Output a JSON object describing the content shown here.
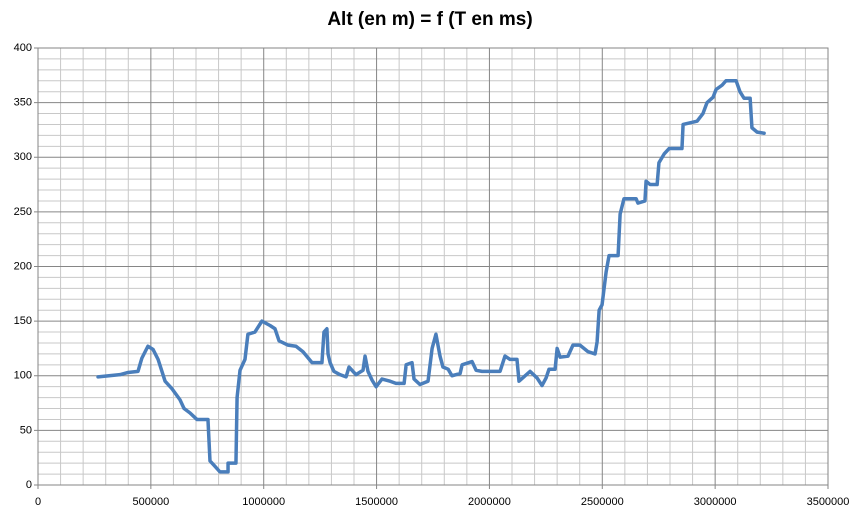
{
  "chart_data": {
    "type": "line",
    "title": "Alt (en m) = f (T en ms)",
    "x": [
      266000,
      363000,
      399000,
      443000,
      460000,
      487000,
      510000,
      532000,
      563000,
      594000,
      629000,
      647000,
      673000,
      704000,
      753000,
      762000,
      780000,
      806000,
      842000,
      842000,
      877000,
      882000,
      895000,
      917000,
      930000,
      961000,
      992000,
      1028000,
      1050000,
      1068000,
      1108000,
      1143000,
      1174000,
      1214000,
      1258000,
      1267000,
      1280000,
      1285000,
      1294000,
      1311000,
      1338000,
      1365000,
      1378000,
      1409000,
      1440000,
      1449000,
      1462000,
      1480000,
      1498000,
      1524000,
      1560000,
      1586000,
      1622000,
      1631000,
      1657000,
      1666000,
      1692000,
      1728000,
      1746000,
      1763000,
      1781000,
      1794000,
      1817000,
      1834000,
      1870000,
      1879000,
      1923000,
      1941000,
      1967000,
      2047000,
      2069000,
      2091000,
      2122000,
      2131000,
      2153000,
      2180000,
      2211000,
      2233000,
      2251000,
      2264000,
      2291000,
      2300000,
      2313000,
      2348000,
      2370000,
      2401000,
      2437000,
      2468000,
      2477000,
      2486000,
      2499000,
      2517000,
      2530000,
      2570000,
      2579000,
      2596000,
      2650000,
      2658000,
      2689000,
      2694000,
      2712000,
      2743000,
      2751000,
      2774000,
      2796000,
      2853000,
      2858000,
      2920000,
      2946000,
      2964000,
      2991000,
      3004000,
      3031000,
      3048000,
      3093000,
      3110000,
      3128000,
      3155000,
      3163000,
      3186000,
      3217000
    ],
    "values": [
      99,
      101,
      103,
      104,
      116,
      127,
      124,
      115,
      95,
      88,
      78,
      70,
      66,
      60,
      60,
      22,
      18,
      12,
      12,
      20,
      20,
      80,
      105,
      115,
      138,
      140,
      150,
      146,
      143,
      132,
      128,
      127,
      122,
      112,
      112,
      140,
      143,
      120,
      112,
      104,
      101,
      99,
      108,
      101,
      105,
      118,
      104,
      96,
      90,
      97,
      95,
      93,
      93,
      110,
      112,
      97,
      92,
      95,
      125,
      138,
      118,
      108,
      106,
      100,
      102,
      110,
      113,
      105,
      104,
      104,
      118,
      115,
      115,
      95,
      99,
      104,
      98,
      91,
      98,
      106,
      106,
      125,
      117,
      118,
      128,
      128,
      122,
      120,
      131,
      160,
      165,
      195,
      210,
      210,
      248,
      262,
      262,
      258,
      260,
      278,
      275,
      275,
      295,
      303,
      308,
      308,
      330,
      333,
      340,
      350,
      355,
      362,
      366,
      370,
      370,
      360,
      354,
      354,
      327,
      323,
      322
    ],
    "color": "#4a7ebb",
    "xlim": [
      0,
      3500000
    ],
    "xticks": [
      0,
      500000,
      1000000,
      1500000,
      2000000,
      2500000,
      3000000,
      3500000
    ],
    "ylim": [
      0,
      400
    ],
    "yticks": [
      0,
      50,
      100,
      150,
      200,
      250,
      300,
      350,
      400
    ],
    "grid": true
  }
}
